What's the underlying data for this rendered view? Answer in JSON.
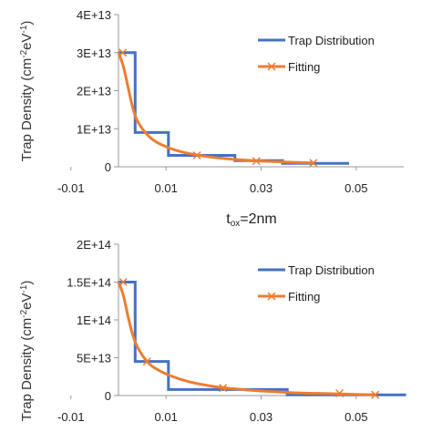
{
  "caption": {
    "main": "t",
    "sub": "ox",
    "rest": "=2nm"
  },
  "colors": {
    "distribution": "#4472C4",
    "fitting": "#ED7D31",
    "axis": "#999999"
  },
  "chart_data": [
    {
      "type": "line",
      "ylabel": "Trap Density (cm-2eV-1)",
      "ylabel_parts": [
        "Trap Density (cm",
        "-2",
        "eV",
        "-1",
        ")"
      ],
      "xlim": [
        -0.01,
        0.06
      ],
      "ylim": [
        0,
        40000000000000
      ],
      "x_ticks": [
        -0.01,
        0.01,
        0.03,
        0.05
      ],
      "x_tick_labels": [
        "-0.01",
        "0.01",
        "0.03",
        "0.05"
      ],
      "y_ticks": [
        0,
        10000000000000,
        20000000000000,
        30000000000000,
        40000000000000
      ],
      "y_tick_labels": [
        "0",
        "1E+13",
        "2E+13",
        "3E+13",
        "4E+13"
      ],
      "legend_position": "top-right",
      "series": [
        {
          "name": "Trap Distribution",
          "style": "step",
          "x": [
            0.0,
            0.0035,
            0.0035,
            0.0105,
            0.0105,
            0.0245,
            0.0245,
            0.0345,
            0.0345,
            0.0485
          ],
          "y": [
            30000000000000,
            30000000000000,
            9000000000000,
            9000000000000,
            3000000000000,
            3000000000000,
            1600000000000,
            1600000000000,
            900000000000,
            900000000000
          ]
        },
        {
          "name": "Fitting",
          "style": "smooth",
          "marker": "x",
          "x": [
            0.0,
            0.001,
            0.002,
            0.003,
            0.004,
            0.006,
            0.008,
            0.011,
            0.014,
            0.018,
            0.022,
            0.026,
            0.03,
            0.035,
            0.041
          ],
          "y": [
            30000000000000,
            26500000000000,
            21000000000000,
            15500000000000,
            12000000000000,
            8500000000000,
            6500000000000,
            4800000000000,
            3700000000000,
            2800000000000,
            2200000000000,
            1800000000000,
            1500000000000,
            1250000000000,
            1000000000000
          ],
          "marker_x": [
            0.0009,
            0.0165,
            0.029,
            0.041
          ],
          "marker_y": [
            30000000000000,
            3000000000000,
            1500000000000,
            1000000000000
          ]
        }
      ]
    },
    {
      "type": "line",
      "ylabel": "Trap Density (cm-2eV-1)",
      "ylabel_parts": [
        "Trap Density (cm",
        "-2",
        "eV",
        "-1",
        ")"
      ],
      "xlim": [
        -0.01,
        0.06
      ],
      "ylim": [
        0,
        200000000000000
      ],
      "x_ticks": [
        -0.01,
        0.01,
        0.03,
        0.05
      ],
      "x_tick_labels": [
        "-0.01",
        "0.01",
        "0.03",
        "0.05"
      ],
      "y_ticks": [
        0,
        50000000000000,
        100000000000000,
        150000000000000,
        200000000000000
      ],
      "y_tick_labels": [
        "0",
        "5E+13",
        "1E+14",
        "1.5E+14",
        "2E+14"
      ],
      "legend_position": "top-right",
      "series": [
        {
          "name": "Trap Distribution",
          "style": "step",
          "x": [
            0.0,
            0.0035,
            0.0035,
            0.0105,
            0.0105,
            0.0355,
            0.0355,
            0.0605
          ],
          "y": [
            150000000000000,
            150000000000000,
            45000000000000,
            45000000000000,
            8000000000000,
            8000000000000,
            1000000000000,
            1000000000000
          ]
        },
        {
          "name": "Fitting",
          "style": "smooth",
          "marker": "x",
          "x": [
            0.0,
            0.001,
            0.002,
            0.003,
            0.004,
            0.006,
            0.008,
            0.011,
            0.015,
            0.02,
            0.025,
            0.03,
            0.036,
            0.044,
            0.054
          ],
          "y": [
            150000000000000,
            133000000000000,
            105000000000000,
            80000000000000,
            64000000000000,
            45000000000000,
            35000000000000,
            26000000000000,
            18000000000000,
            12000000000000,
            8500000000000,
            6000000000000,
            4000000000000,
            2500000000000,
            1000000000000
          ],
          "marker_x": [
            0.001,
            0.006,
            0.022,
            0.0465,
            0.054
          ],
          "marker_y": [
            150000000000000,
            45000000000000,
            10000000000000,
            3000000000000,
            1000000000000
          ]
        }
      ]
    }
  ]
}
